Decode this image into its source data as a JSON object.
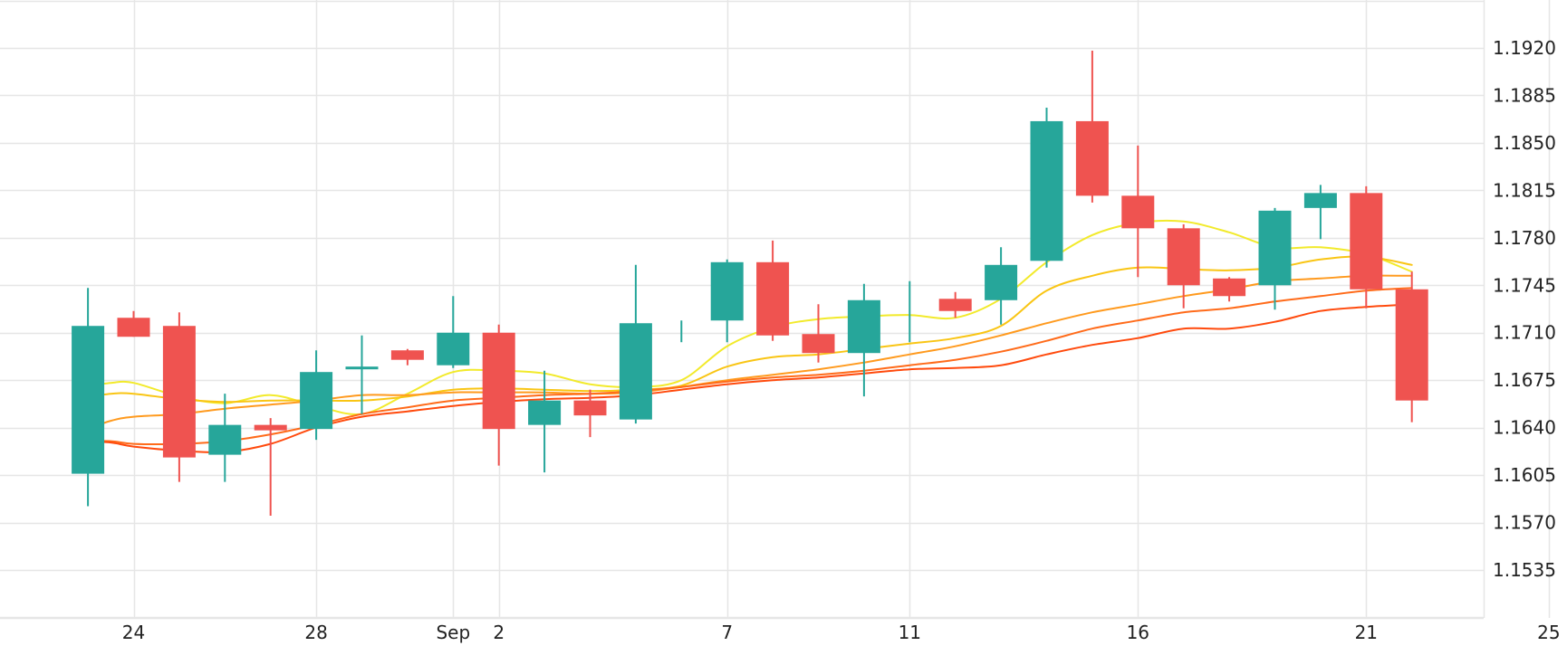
{
  "chart_data": {
    "type": "candlestick",
    "title": "",
    "xlabel": "",
    "ylabel": "",
    "ylim": [
      1.15,
      1.1945
    ],
    "y_ticks": [
      "1.1920",
      "1.1885",
      "1.1850",
      "1.1815",
      "1.1780",
      "1.1745",
      "1.1710",
      "1.1675",
      "1.1640",
      "1.1605",
      "1.1570",
      "1.1535"
    ],
    "x_ticks": [
      {
        "label": "24",
        "day": 24
      },
      {
        "label": "28",
        "day": 28
      },
      {
        "label": "Sep",
        "day": 31
      },
      {
        "label": "2",
        "day": 32
      },
      {
        "label": "7",
        "day": 37
      },
      {
        "label": "11",
        "day": 41
      },
      {
        "label": "16",
        "day": 46
      },
      {
        "label": "21",
        "day": 51
      },
      {
        "label": "25",
        "day": 55
      }
    ],
    "grid": true,
    "colors": {
      "up": "#26a69a",
      "down": "#ef5350",
      "grid": "#e6e6e6"
    },
    "candles": [
      {
        "day": 23,
        "open": 1.1606,
        "high": 1.1743,
        "low": 1.1582,
        "close": 1.1715
      },
      {
        "day": 24,
        "open": 1.1721,
        "high": 1.1726,
        "low": 1.1707,
        "close": 1.1707
      },
      {
        "day": 25,
        "open": 1.1715,
        "high": 1.1725,
        "low": 1.16,
        "close": 1.1618
      },
      {
        "day": 26,
        "open": 1.162,
        "high": 1.1665,
        "low": 1.16,
        "close": 1.1642
      },
      {
        "day": 27,
        "open": 1.1642,
        "high": 1.1647,
        "low": 1.1575,
        "close": 1.1638
      },
      {
        "day": 28,
        "open": 1.1639,
        "high": 1.1697,
        "low": 1.1631,
        "close": 1.1681
      },
      {
        "day": 29,
        "open": 1.1683,
        "high": 1.1708,
        "low": 1.165,
        "close": 1.1685
      },
      {
        "day": 30,
        "open": 1.1697,
        "high": 1.1698,
        "low": 1.1686,
        "close": 1.169
      },
      {
        "day": 31,
        "open": 1.1686,
        "high": 1.1737,
        "low": 1.1684,
        "close": 1.171
      },
      {
        "day": 32,
        "open": 1.171,
        "high": 1.1716,
        "low": 1.1612,
        "close": 1.1639
      },
      {
        "day": 33,
        "open": 1.1642,
        "high": 1.1682,
        "low": 1.1607,
        "close": 1.166
      },
      {
        "day": 34,
        "open": 1.166,
        "high": 1.1668,
        "low": 1.1633,
        "close": 1.1649
      },
      {
        "day": 35,
        "open": 1.1646,
        "high": 1.176,
        "low": 1.1643,
        "close": 1.1717
      },
      {
        "day": 36,
        "open": 1.1703,
        "high": 1.1719,
        "low": 1.1703,
        "close": 1.1703
      },
      {
        "day": 37,
        "open": 1.1719,
        "high": 1.1764,
        "low": 1.1703,
        "close": 1.1762
      },
      {
        "day": 38,
        "open": 1.1762,
        "high": 1.1778,
        "low": 1.1704,
        "close": 1.1708
      },
      {
        "day": 39,
        "open": 1.1709,
        "high": 1.1731,
        "low": 1.1688,
        "close": 1.1695
      },
      {
        "day": 40,
        "open": 1.1695,
        "high": 1.1746,
        "low": 1.1663,
        "close": 1.1734
      },
      {
        "day": 41,
        "open": 1.1703,
        "high": 1.1748,
        "low": 1.1703,
        "close": 1.1703
      },
      {
        "day": 42,
        "open": 1.1735,
        "high": 1.174,
        "low": 1.1721,
        "close": 1.1726
      },
      {
        "day": 43,
        "open": 1.1734,
        "high": 1.1773,
        "low": 1.1716,
        "close": 1.176
      },
      {
        "day": 44,
        "open": 1.1763,
        "high": 1.1876,
        "low": 1.1758,
        "close": 1.1866
      },
      {
        "day": 45,
        "open": 1.1866,
        "high": 1.1918,
        "low": 1.1806,
        "close": 1.1811
      },
      {
        "day": 46,
        "open": 1.1811,
        "high": 1.1848,
        "low": 1.1751,
        "close": 1.1787
      },
      {
        "day": 47,
        "open": 1.1787,
        "high": 1.179,
        "low": 1.1728,
        "close": 1.1745
      },
      {
        "day": 48,
        "open": 1.175,
        "high": 1.1751,
        "low": 1.1733,
        "close": 1.1737
      },
      {
        "day": 49,
        "open": 1.1745,
        "high": 1.1802,
        "low": 1.1727,
        "close": 1.18
      },
      {
        "day": 50,
        "open": 1.1802,
        "high": 1.1819,
        "low": 1.1779,
        "close": 1.1813
      },
      {
        "day": 51,
        "open": 1.1813,
        "high": 1.1818,
        "low": 1.1728,
        "close": 1.1742
      },
      {
        "day": 52,
        "open": 1.1742,
        "high": 1.1755,
        "low": 1.1644,
        "close": 1.166
      }
    ],
    "series": [
      {
        "color": "#f2ea2b",
        "points": [
          [
            22.9,
            1.167
          ],
          [
            23.5,
            1.1673
          ],
          [
            24,
            1.1673
          ],
          [
            25,
            1.1663
          ],
          [
            26,
            1.1658
          ],
          [
            27,
            1.1664
          ],
          [
            28,
            1.1656
          ],
          [
            29,
            1.165
          ],
          [
            30,
            1.1665
          ],
          [
            31,
            1.1681
          ],
          [
            32,
            1.1682
          ],
          [
            33,
            1.168
          ],
          [
            34,
            1.1672
          ],
          [
            35,
            1.167
          ],
          [
            36,
            1.1675
          ],
          [
            37,
            1.17
          ],
          [
            38,
            1.1714
          ],
          [
            39,
            1.172
          ],
          [
            40,
            1.1722
          ],
          [
            41,
            1.1723
          ],
          [
            42,
            1.1721
          ],
          [
            43,
            1.1735
          ],
          [
            44,
            1.1762
          ],
          [
            45,
            1.1782
          ],
          [
            46,
            1.1791
          ],
          [
            47,
            1.1792
          ],
          [
            48,
            1.1784
          ],
          [
            49,
            1.1773
          ],
          [
            50,
            1.1773
          ],
          [
            51,
            1.1768
          ],
          [
            52,
            1.1755
          ]
        ]
      },
      {
        "color": "#f9c514",
        "points": [
          [
            22.9,
            1.1662
          ],
          [
            23.5,
            1.1665
          ],
          [
            24,
            1.1665
          ],
          [
            25,
            1.1661
          ],
          [
            26,
            1.1659
          ],
          [
            27,
            1.166
          ],
          [
            28,
            1.166
          ],
          [
            29,
            1.166
          ],
          [
            30,
            1.1663
          ],
          [
            31,
            1.1668
          ],
          [
            32,
            1.1669
          ],
          [
            33,
            1.1668
          ],
          [
            34,
            1.1667
          ],
          [
            35,
            1.1668
          ],
          [
            36,
            1.1671
          ],
          [
            37,
            1.1685
          ],
          [
            38,
            1.1692
          ],
          [
            39,
            1.1694
          ],
          [
            40,
            1.1698
          ],
          [
            41,
            1.1702
          ],
          [
            42,
            1.1706
          ],
          [
            43,
            1.1715
          ],
          [
            44,
            1.1741
          ],
          [
            45,
            1.1752
          ],
          [
            46,
            1.1758
          ],
          [
            47,
            1.1757
          ],
          [
            48,
            1.1756
          ],
          [
            49,
            1.1758
          ],
          [
            50,
            1.1764
          ],
          [
            51,
            1.1766
          ],
          [
            52,
            1.176
          ]
        ]
      },
      {
        "color": "#ff9a1e",
        "points": [
          [
            22.9,
            1.1638
          ],
          [
            23.5,
            1.1645
          ],
          [
            24,
            1.1648
          ],
          [
            25,
            1.165
          ],
          [
            26,
            1.1654
          ],
          [
            27,
            1.1657
          ],
          [
            28,
            1.166
          ],
          [
            29,
            1.1664
          ],
          [
            30,
            1.1664
          ],
          [
            31,
            1.1666
          ],
          [
            32,
            1.1666
          ],
          [
            33,
            1.1666
          ],
          [
            34,
            1.1665
          ],
          [
            35,
            1.1666
          ],
          [
            36,
            1.167
          ],
          [
            37,
            1.1675
          ],
          [
            38,
            1.1679
          ],
          [
            39,
            1.1683
          ],
          [
            40,
            1.1688
          ],
          [
            41,
            1.1694
          ],
          [
            42,
            1.17
          ],
          [
            43,
            1.1708
          ],
          [
            44,
            1.1717
          ],
          [
            45,
            1.1725
          ],
          [
            46,
            1.1731
          ],
          [
            47,
            1.1737
          ],
          [
            48,
            1.1742
          ],
          [
            49,
            1.1748
          ],
          [
            50,
            1.175
          ],
          [
            51,
            1.1752
          ],
          [
            52,
            1.1752
          ]
        ]
      },
      {
        "color": "#ff6b1a",
        "points": [
          [
            22.9,
            1.163
          ],
          [
            23.5,
            1.163
          ],
          [
            24,
            1.1628
          ],
          [
            25,
            1.1628
          ],
          [
            26,
            1.163
          ],
          [
            27,
            1.1635
          ],
          [
            28,
            1.1642
          ],
          [
            29,
            1.165
          ],
          [
            30,
            1.1655
          ],
          [
            31,
            1.166
          ],
          [
            32,
            1.1662
          ],
          [
            33,
            1.1664
          ],
          [
            34,
            1.1665
          ],
          [
            35,
            1.1667
          ],
          [
            36,
            1.167
          ],
          [
            37,
            1.1674
          ],
          [
            38,
            1.1677
          ],
          [
            39,
            1.1679
          ],
          [
            40,
            1.1682
          ],
          [
            41,
            1.1686
          ],
          [
            42,
            1.169
          ],
          [
            43,
            1.1696
          ],
          [
            44,
            1.1704
          ],
          [
            45,
            1.1713
          ],
          [
            46,
            1.1719
          ],
          [
            47,
            1.1725
          ],
          [
            48,
            1.1728
          ],
          [
            49,
            1.1733
          ],
          [
            50,
            1.1737
          ],
          [
            51,
            1.1741
          ],
          [
            52,
            1.1743
          ]
        ]
      },
      {
        "color": "#ff4a0d",
        "points": [
          [
            22.9,
            1.163
          ],
          [
            23.5,
            1.1629
          ],
          [
            24,
            1.1626
          ],
          [
            25,
            1.1623
          ],
          [
            26,
            1.1622
          ],
          [
            27,
            1.1628
          ],
          [
            28,
            1.164
          ],
          [
            29,
            1.1648
          ],
          [
            30,
            1.1652
          ],
          [
            31,
            1.1656
          ],
          [
            32,
            1.1659
          ],
          [
            33,
            1.1661
          ],
          [
            34,
            1.1662
          ],
          [
            35,
            1.1664
          ],
          [
            36,
            1.1668
          ],
          [
            37,
            1.1672
          ],
          [
            38,
            1.1675
          ],
          [
            39,
            1.1677
          ],
          [
            40,
            1.168
          ],
          [
            41,
            1.1683
          ],
          [
            42,
            1.1684
          ],
          [
            43,
            1.1686
          ],
          [
            44,
            1.1694
          ],
          [
            45,
            1.1701
          ],
          [
            46,
            1.1706
          ],
          [
            47,
            1.1713
          ],
          [
            48,
            1.1713
          ],
          [
            49,
            1.1718
          ],
          [
            50,
            1.1726
          ],
          [
            51,
            1.1729
          ],
          [
            52,
            1.1731
          ]
        ]
      }
    ]
  }
}
